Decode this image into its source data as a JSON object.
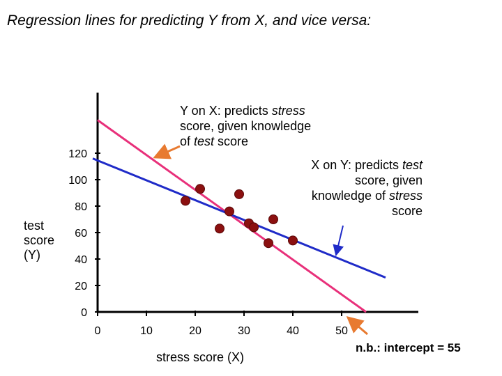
{
  "title": "Regression lines for predicting Y from X, and vice versa:",
  "annotations": {
    "yonx": {
      "line1": "Y on X: predicts ",
      "line1_em": "stress",
      "line2": "score, given knowledge",
      "line3_pre": "of ",
      "line3_em": "test",
      "line3_post": " score"
    },
    "xony": {
      "line1": "X on Y: predicts ",
      "line1_em": "test",
      "line2": "score, given",
      "line3_pre": "knowledge of ",
      "line3_em": "stress",
      "line4": "score"
    },
    "note": "n.b.: intercept = 55"
  },
  "colors": {
    "yonx_line": "#e8307a",
    "xony_line": "#1f2bc8",
    "points": "#8b1010",
    "arrow": "#e87a30"
  },
  "chart_data": {
    "type": "scatter",
    "xlabel": "stress score (X)",
    "ylabel_lines": [
      "test",
      "score",
      "(Y)"
    ],
    "xlim": [
      0,
      55
    ],
    "ylim": [
      0,
      120
    ],
    "x_ticks": [
      0,
      10,
      20,
      30,
      40,
      50
    ],
    "y_ticks": [
      0,
      20,
      40,
      60,
      80,
      100,
      120
    ],
    "points": [
      {
        "x": 18,
        "y": 84
      },
      {
        "x": 21,
        "y": 93
      },
      {
        "x": 25,
        "y": 63
      },
      {
        "x": 27,
        "y": 76
      },
      {
        "x": 29,
        "y": 89
      },
      {
        "x": 31,
        "y": 67
      },
      {
        "x": 32,
        "y": 64
      },
      {
        "x": 35,
        "y": 52
      },
      {
        "x": 36,
        "y": 70
      },
      {
        "x": 40,
        "y": 54
      }
    ],
    "lines": [
      {
        "name": "Y on X",
        "x1": 0,
        "y1": 145,
        "x2": 55,
        "y2": 0
      },
      {
        "name": "X on Y",
        "x1": -1,
        "y1": 116,
        "x2": 59,
        "y2": 26
      }
    ]
  }
}
